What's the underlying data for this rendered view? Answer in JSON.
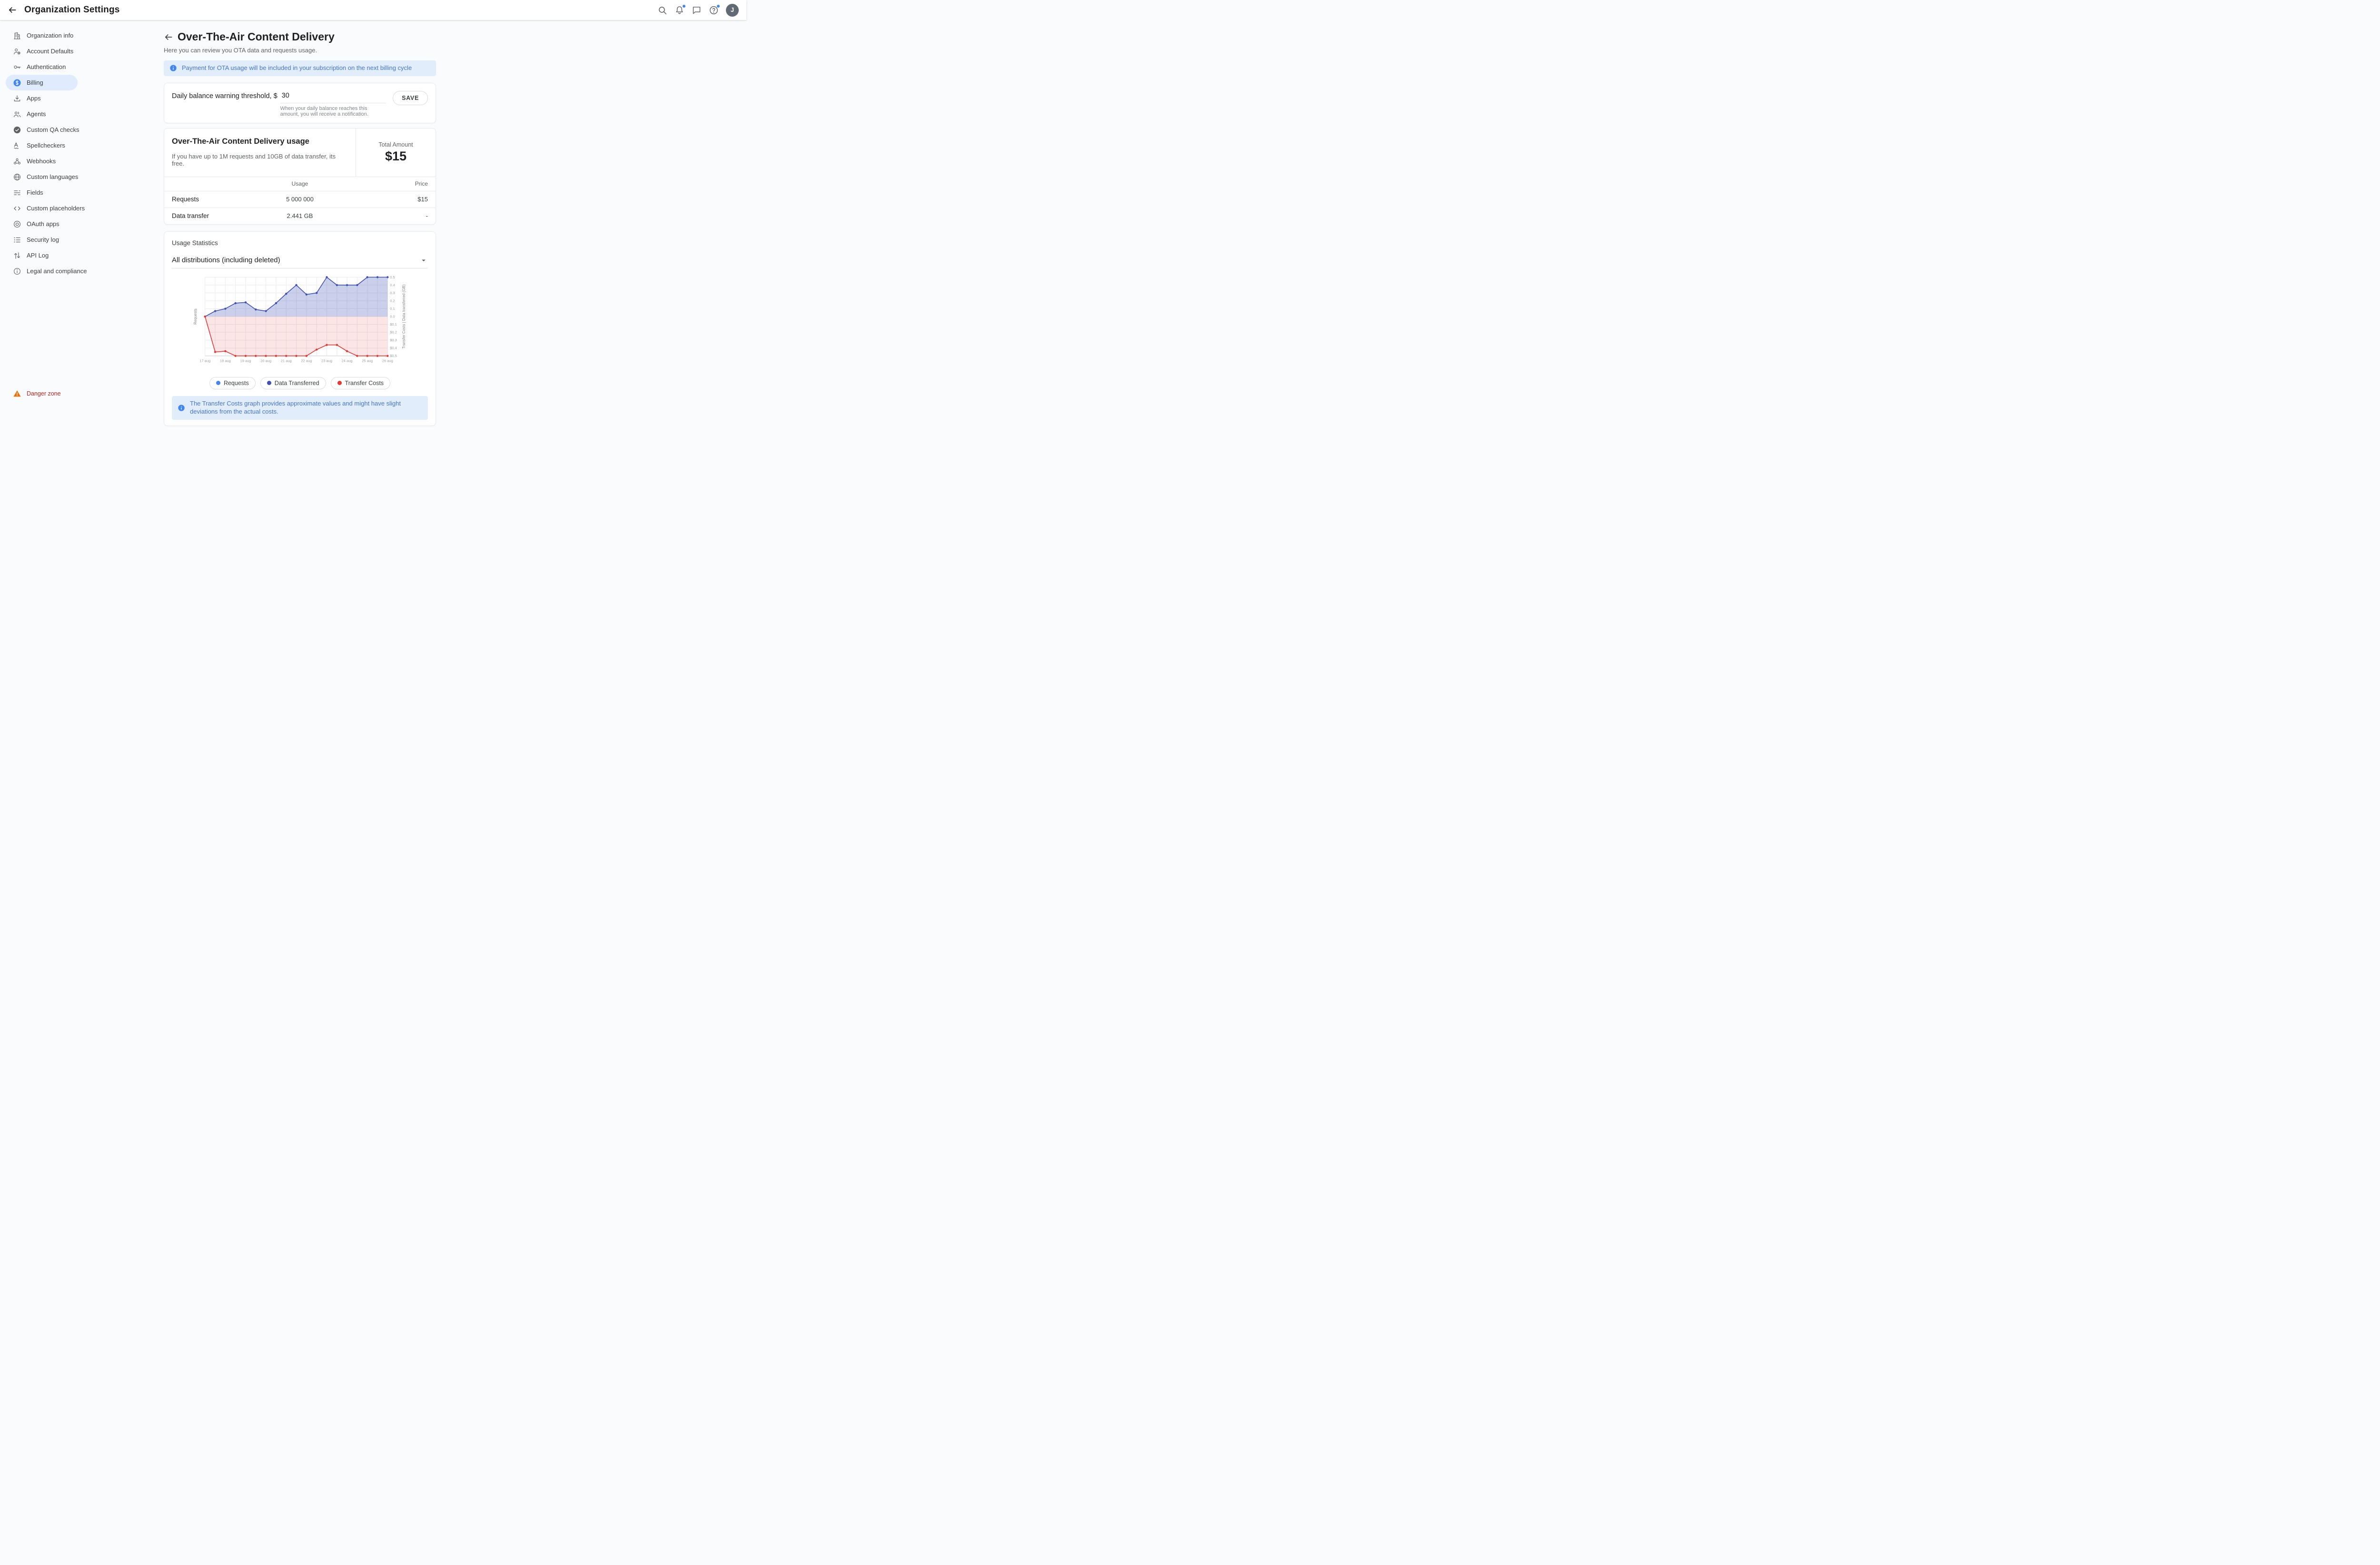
{
  "topbar": {
    "title": "Organization Settings",
    "avatar_initial": "J"
  },
  "sidebar": {
    "items": [
      {
        "label": "Organization info",
        "icon": "building-icon",
        "active": false
      },
      {
        "label": "Account Defaults",
        "icon": "account-defaults-icon",
        "active": false
      },
      {
        "label": "Authentication",
        "icon": "key-icon",
        "active": false
      },
      {
        "label": "Billing",
        "icon": "billing-icon",
        "active": true
      },
      {
        "label": "Apps",
        "icon": "download-icon",
        "active": false
      },
      {
        "label": "Agents",
        "icon": "agents-icon",
        "active": false
      },
      {
        "label": "Custom QA checks",
        "icon": "check-circle-icon",
        "active": false
      },
      {
        "label": "Spellcheckers",
        "icon": "spellcheck-icon",
        "active": false
      },
      {
        "label": "Webhooks",
        "icon": "webhook-icon",
        "active": false
      },
      {
        "label": "Custom languages",
        "icon": "globe-icon",
        "active": false
      },
      {
        "label": "Fields",
        "icon": "fields-icon",
        "active": false
      },
      {
        "label": "Custom placeholders",
        "icon": "code-icon",
        "active": false
      },
      {
        "label": "OAuth apps",
        "icon": "oauth-icon",
        "active": false
      },
      {
        "label": "Security log",
        "icon": "security-log-icon",
        "active": false
      },
      {
        "label": "API Log",
        "icon": "api-log-icon",
        "active": false
      },
      {
        "label": "Legal and compliance",
        "icon": "legal-icon",
        "active": false
      }
    ],
    "danger_zone_label": "Danger zone"
  },
  "page": {
    "title": "Over-The-Air Content Delivery",
    "subtitle": "Here you can review you OTA data and requests usage.",
    "billing_banner": "Payment for OTA usage will be included in your subscription on the next billing cycle"
  },
  "threshold": {
    "label": "Daily balance warning threshold, $",
    "value": "30",
    "helper": "When your daily balance reaches this amount, you will receive a notification.",
    "save_label": "SAVE"
  },
  "usage": {
    "title": "Over-The-Air Content Delivery usage",
    "description": "If you have up to 1M requests and 10GB of data transfer, its free.",
    "total_label": "Total Amount",
    "total_value": "$15",
    "columns": {
      "usage": "Usage",
      "price": "Price"
    },
    "rows": [
      {
        "name": "Requests",
        "usage": "5 000 000",
        "price": "$15"
      },
      {
        "name": "Data transfer",
        "usage": "2.441 GB",
        "price": "-"
      }
    ]
  },
  "statistics": {
    "title": "Usage Statistics",
    "distribution_filter": "All distributions (including deleted)",
    "note": "The Transfer Costs graph provides approximate values and might have slight deviations from the actual costs."
  },
  "chart_data": {
    "type": "area",
    "title": "Usage Statistics",
    "x_labels": [
      "17 aug",
      "18 aug",
      "19 aug",
      "20 aug",
      "21 aug",
      "22 aug",
      "23 aug",
      "24 aug",
      "25 aug",
      "26 aug"
    ],
    "left_axis_label": "Requests",
    "right_axis_label": "Transfer Costs | Data transferred (GB)",
    "upper_axis_ticks": [
      0.5,
      0.4,
      0.3,
      0.2,
      0.1,
      0.0
    ],
    "lower_axis_ticks": [
      "$0.1",
      "$0.2",
      "$0.3",
      "$0.4",
      "$0.5"
    ],
    "upper_range": [
      0,
      0.5
    ],
    "lower_range": [
      0,
      0.5
    ],
    "lower_axis_inverted": true,
    "grid": true,
    "legend_position": "bottom",
    "legend": [
      {
        "label": "Requests",
        "color": "#4285f4"
      },
      {
        "label": "Data Transferred",
        "color": "#3f51b5"
      },
      {
        "label": "Transfer Costs",
        "color": "#e53935"
      }
    ],
    "series": [
      {
        "name": "Data Transferred",
        "axis": "upper",
        "color": "#3f51b5",
        "fill": "rgba(63,81,181,0.28)",
        "values": [
          0.0,
          0.07,
          0.1,
          0.17,
          0.18,
          0.09,
          0.07,
          0.17,
          0.29,
          0.4,
          0.28,
          0.3,
          0.5,
          0.4,
          0.4,
          0.4,
          0.5,
          0.5,
          0.5
        ]
      },
      {
        "name": "Transfer Costs",
        "axis": "lower",
        "color": "#e53935",
        "fill": "rgba(229,57,53,0.13)",
        "values": [
          0.0,
          0.45,
          0.44,
          0.5,
          0.5,
          0.5,
          0.5,
          0.5,
          0.5,
          0.5,
          0.5,
          0.42,
          0.36,
          0.36,
          0.44,
          0.5,
          0.5,
          0.5,
          0.5
        ]
      }
    ]
  }
}
